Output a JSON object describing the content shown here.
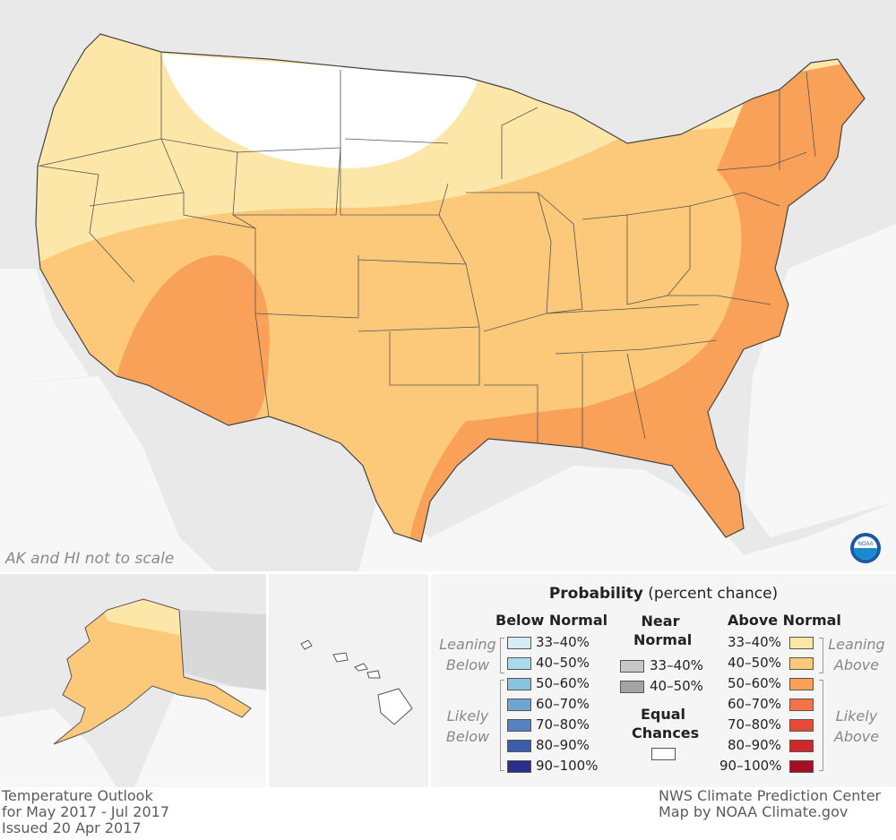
{
  "map": {
    "scale_note": "AK and HI not to scale"
  },
  "legend": {
    "title_bold": "Probability",
    "title_rest": " (percent chance)",
    "below_header": "Below Normal",
    "near_header_1": "Near",
    "near_header_2": "Normal",
    "above_header": "Above Normal",
    "leaning_below_1": "Leaning",
    "leaning_below_2": "Below",
    "likely_below_1": "Likely",
    "likely_below_2": "Below",
    "leaning_above_1": "Leaning",
    "leaning_above_2": "Above",
    "likely_above_1": "Likely",
    "likely_above_2": "Above",
    "equal_1": "Equal",
    "equal_2": "Chances",
    "below": [
      {
        "label": "33–40%",
        "color": "#d4ecf5"
      },
      {
        "label": "40–50%",
        "color": "#a9dbee"
      },
      {
        "label": "50–60%",
        "color": "#88c4e0"
      },
      {
        "label": "60–70%",
        "color": "#6fa5d2"
      },
      {
        "label": "70–80%",
        "color": "#5482c2"
      },
      {
        "label": "80–90%",
        "color": "#3b5cad"
      },
      {
        "label": "90–100%",
        "color": "#2a2f8f"
      }
    ],
    "near": [
      {
        "label": "33–40%",
        "color": "#c8c8c8"
      },
      {
        "label": "40–50%",
        "color": "#a3a3a3"
      }
    ],
    "above": [
      {
        "label": "33–40%",
        "color": "#fde7a8"
      },
      {
        "label": "40–50%",
        "color": "#fcc97a"
      },
      {
        "label": "50–60%",
        "color": "#f9a159"
      },
      {
        "label": "60–70%",
        "color": "#f27447"
      },
      {
        "label": "70–80%",
        "color": "#e44a36"
      },
      {
        "label": "80–90%",
        "color": "#cc2a2a"
      },
      {
        "label": "90–100%",
        "color": "#a50f26"
      }
    ],
    "equal_color": "#ffffff"
  },
  "footer": {
    "left_1": "Temperature Outlook",
    "left_2": "for May 2017 - Jul 2017",
    "left_3": "Issued 20 Apr 2017",
    "right_1": "NWS Climate Prediction Center",
    "right_2": "Map by NOAA Climate.gov"
  },
  "colors": {
    "land_bg": "#e9e9e9",
    "water_bg": "#ffffff",
    "outlook_33_40": "#fde7a8",
    "outlook_40_50": "#fcc97a",
    "outlook_50_60": "#f9a159"
  }
}
